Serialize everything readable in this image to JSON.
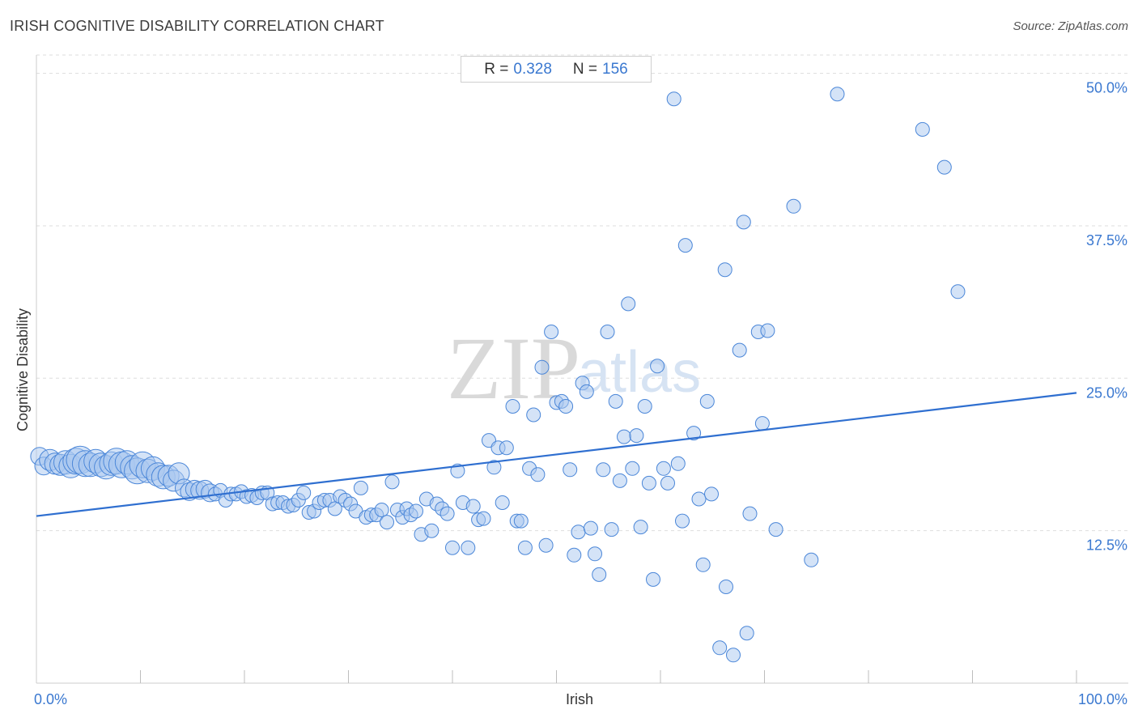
{
  "header": {
    "title": "IRISH COGNITIVE DISABILITY CORRELATION CHART",
    "source": "Source: ZipAtlas.com"
  },
  "stats": {
    "r_label": "R =",
    "r_value": "0.328",
    "n_label": "N =",
    "n_value": "156"
  },
  "watermark": {
    "zip": "ZIP",
    "atlas": "atlas"
  },
  "colors": {
    "accent": "#3a78d0",
    "point_fill": "#aac8f0",
    "point_stroke": "#4a86d8",
    "grid": "#dddddd"
  },
  "chart_data": {
    "type": "scatter",
    "title": "IRISH COGNITIVE DISABILITY CORRELATION CHART",
    "xlabel": "Irish",
    "ylabel": "Cognitive Disability",
    "xlim": [
      0,
      100
    ],
    "ylim": [
      0,
      51.5
    ],
    "x_tick_labels": [
      "0.0%",
      "100.0%"
    ],
    "y_ticks": [
      12.5,
      25.0,
      37.5,
      50.0
    ],
    "y_tick_labels": [
      "12.5%",
      "25.0%",
      "37.5%",
      "50.0%"
    ],
    "trend_line": {
      "x": [
        0,
        100
      ],
      "y": [
        13.7,
        23.8
      ]
    },
    "points": [
      [
        0.3,
        18.6,
        3
      ],
      [
        0.7,
        17.8,
        3
      ],
      [
        1.3,
        18.3,
        4
      ],
      [
        1.8,
        18.0,
        4
      ],
      [
        2.3,
        17.9,
        4
      ],
      [
        2.8,
        18.1,
        5
      ],
      [
        3.3,
        17.8,
        5
      ],
      [
        3.8,
        18.2,
        6
      ],
      [
        4.2,
        18.3,
        7
      ],
      [
        4.7,
        18.0,
        6
      ],
      [
        5.2,
        17.9,
        5
      ],
      [
        5.7,
        18.2,
        5
      ],
      [
        6.2,
        17.9,
        5
      ],
      [
        6.7,
        17.7,
        5
      ],
      [
        7.2,
        18.0,
        5
      ],
      [
        7.7,
        18.2,
        6
      ],
      [
        8.2,
        17.9,
        6
      ],
      [
        8.7,
        18.1,
        5
      ],
      [
        9.2,
        17.7,
        5
      ],
      [
        9.7,
        17.4,
        6
      ],
      [
        10.2,
        17.9,
        6
      ],
      [
        10.7,
        17.4,
        5
      ],
      [
        11.2,
        17.6,
        5
      ],
      [
        11.7,
        17.1,
        5
      ],
      [
        12.2,
        16.9,
        5
      ],
      [
        12.7,
        17.0,
        4
      ],
      [
        13.2,
        16.6,
        4
      ],
      [
        13.7,
        17.2,
        4
      ],
      [
        14.2,
        16.0,
        3
      ],
      [
        14.7,
        15.7,
        3
      ],
      [
        15.2,
        15.9,
        3
      ],
      [
        15.7,
        15.8,
        3
      ],
      [
        16.2,
        15.9,
        3
      ],
      [
        16.7,
        15.6,
        3
      ],
      [
        17.2,
        15.5,
        2
      ],
      [
        17.7,
        15.8,
        2
      ],
      [
        18.2,
        15.0,
        2
      ],
      [
        18.7,
        15.5,
        2
      ],
      [
        19.2,
        15.5,
        2
      ],
      [
        19.7,
        15.7,
        2
      ],
      [
        20.2,
        15.3,
        2
      ],
      [
        20.7,
        15.4,
        2
      ],
      [
        21.2,
        15.2,
        2
      ],
      [
        21.7,
        15.6,
        2
      ],
      [
        22.2,
        15.6,
        2
      ],
      [
        22.7,
        14.7,
        2
      ],
      [
        23.2,
        14.8,
        2
      ],
      [
        23.7,
        14.8,
        2
      ],
      [
        24.2,
        14.5,
        2
      ],
      [
        24.7,
        14.6,
        2
      ],
      [
        25.2,
        15.0,
        2
      ],
      [
        25.7,
        15.6,
        2
      ],
      [
        26.2,
        14.0,
        2
      ],
      [
        26.7,
        14.1,
        2
      ],
      [
        27.2,
        14.8,
        2
      ],
      [
        27.7,
        15.0,
        2
      ],
      [
        28.2,
        15.0,
        2
      ],
      [
        28.7,
        14.3,
        2
      ],
      [
        29.2,
        15.3,
        2
      ],
      [
        29.7,
        15.0,
        2
      ],
      [
        30.2,
        14.7,
        2
      ],
      [
        30.7,
        14.1,
        2
      ],
      [
        31.2,
        16.0,
        2
      ],
      [
        31.7,
        13.6,
        2
      ],
      [
        32.2,
        13.8,
        2
      ],
      [
        32.7,
        13.8,
        2
      ],
      [
        33.2,
        14.2,
        2
      ],
      [
        33.7,
        13.2,
        2
      ],
      [
        34.2,
        16.5,
        2
      ],
      [
        34.7,
        14.2,
        2
      ],
      [
        35.2,
        13.6,
        2
      ],
      [
        35.6,
        14.3,
        2
      ],
      [
        36.0,
        13.8,
        2
      ],
      [
        36.5,
        14.1,
        2
      ],
      [
        37.0,
        12.2,
        2
      ],
      [
        37.5,
        15.1,
        2
      ],
      [
        38.0,
        12.5,
        2
      ],
      [
        38.5,
        14.7,
        2
      ],
      [
        39.0,
        14.3,
        2
      ],
      [
        39.5,
        13.9,
        2
      ],
      [
        40.0,
        11.1,
        2
      ],
      [
        40.5,
        17.4,
        2
      ],
      [
        41.0,
        14.8,
        2
      ],
      [
        41.5,
        11.1,
        2
      ],
      [
        42.0,
        14.5,
        2
      ],
      [
        42.5,
        13.4,
        2
      ],
      [
        43.0,
        13.5,
        2
      ],
      [
        43.5,
        19.9,
        2
      ],
      [
        44.0,
        17.7,
        2
      ],
      [
        44.4,
        19.3,
        2
      ],
      [
        44.8,
        14.8,
        2
      ],
      [
        45.2,
        19.3,
        2
      ],
      [
        45.8,
        22.7,
        2
      ],
      [
        46.2,
        13.3,
        2
      ],
      [
        46.6,
        13.3,
        2
      ],
      [
        47.0,
        11.1,
        2
      ],
      [
        47.4,
        17.6,
        2
      ],
      [
        47.8,
        22.0,
        2
      ],
      [
        48.2,
        17.1,
        2
      ],
      [
        48.6,
        25.9,
        2
      ],
      [
        49.0,
        11.3,
        2
      ],
      [
        49.5,
        28.8,
        2
      ],
      [
        50.0,
        23.0,
        2
      ],
      [
        50.5,
        23.1,
        2
      ],
      [
        50.9,
        22.7,
        2
      ],
      [
        51.3,
        17.5,
        2
      ],
      [
        51.7,
        10.5,
        2
      ],
      [
        52.1,
        12.4,
        2
      ],
      [
        52.5,
        24.6,
        2
      ],
      [
        52.9,
        23.9,
        2
      ],
      [
        53.3,
        12.7,
        2
      ],
      [
        53.7,
        10.6,
        2
      ],
      [
        54.1,
        8.9,
        2
      ],
      [
        54.5,
        17.5,
        2
      ],
      [
        54.9,
        28.8,
        2
      ],
      [
        55.3,
        12.6,
        2
      ],
      [
        55.7,
        23.1,
        2
      ],
      [
        56.1,
        16.6,
        2
      ],
      [
        56.5,
        20.2,
        2
      ],
      [
        56.9,
        31.1,
        2
      ],
      [
        57.3,
        17.6,
        2
      ],
      [
        57.7,
        20.3,
        2
      ],
      [
        58.1,
        12.8,
        2
      ],
      [
        58.5,
        22.7,
        2
      ],
      [
        58.9,
        16.4,
        2
      ],
      [
        59.3,
        8.5,
        2
      ],
      [
        59.7,
        26.0,
        2
      ],
      [
        60.3,
        17.6,
        2
      ],
      [
        60.7,
        16.4,
        2
      ],
      [
        61.3,
        47.9,
        2
      ],
      [
        61.7,
        18.0,
        2
      ],
      [
        62.1,
        13.3,
        2
      ],
      [
        62.4,
        35.9,
        2
      ],
      [
        63.2,
        20.5,
        2
      ],
      [
        63.7,
        15.1,
        2
      ],
      [
        64.1,
        9.7,
        2
      ],
      [
        64.5,
        23.1,
        2
      ],
      [
        64.9,
        15.5,
        2
      ],
      [
        65.7,
        2.9,
        2
      ],
      [
        66.2,
        33.9,
        2
      ],
      [
        66.3,
        7.9,
        2
      ],
      [
        67.0,
        2.3,
        2
      ],
      [
        67.6,
        27.3,
        2
      ],
      [
        68.0,
        37.8,
        2
      ],
      [
        68.3,
        4.1,
        2
      ],
      [
        68.6,
        13.9,
        2
      ],
      [
        69.4,
        28.8,
        2
      ],
      [
        69.8,
        21.3,
        2
      ],
      [
        70.3,
        28.9,
        2
      ],
      [
        71.1,
        12.6,
        2
      ],
      [
        72.8,
        39.1,
        2
      ],
      [
        74.5,
        10.1,
        2
      ],
      [
        77.0,
        48.3,
        2
      ],
      [
        85.2,
        45.4,
        2
      ],
      [
        87.3,
        42.3,
        2
      ],
      [
        88.6,
        32.1,
        2
      ]
    ]
  }
}
